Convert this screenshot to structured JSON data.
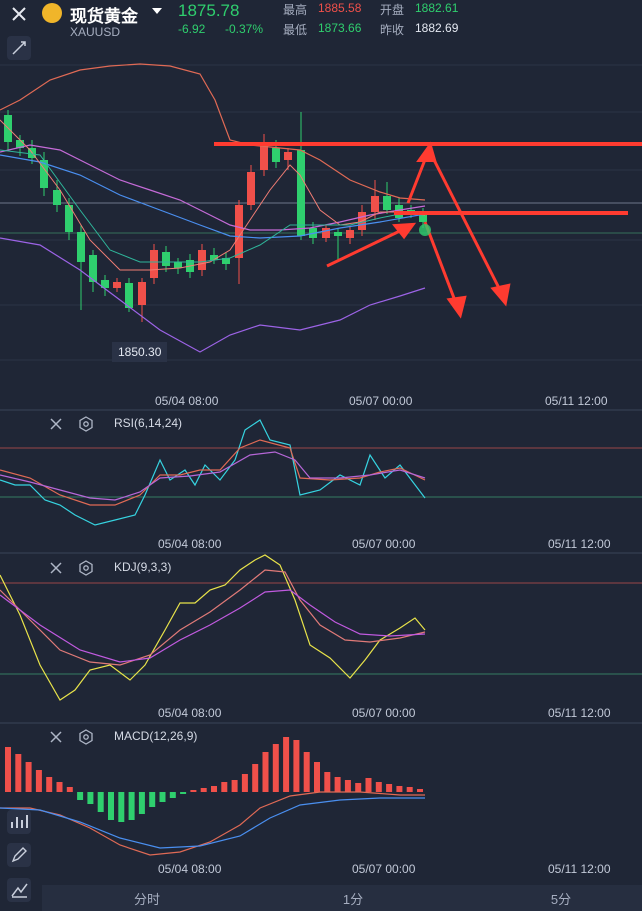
{
  "header": {
    "title": "现货黄金",
    "symbol": "XAUUSD",
    "price": "1875.78",
    "change": "-6.92",
    "change_pct": "-0.37%",
    "high_label": "最高",
    "high_value": "1885.58",
    "open_label": "开盘",
    "open_value": "1882.61",
    "low_label": "最低",
    "low_value": "1873.66",
    "prev_label": "昨收",
    "prev_value": "1882.69"
  },
  "main_chart": {
    "min_price_tag": "1850.30",
    "x_labels": [
      "05/04 08:00",
      "05/07 00:00",
      "05/11 12:00"
    ]
  },
  "rsi": {
    "label": "RSI(6,14,24)",
    "x_labels": [
      "05/04 08:00",
      "05/07 00:00",
      "05/11 12:00"
    ]
  },
  "kdj": {
    "label": "KDJ(9,3,3)",
    "x_labels": [
      "05/04 08:00",
      "05/07 00:00",
      "05/11 12:00"
    ]
  },
  "macd": {
    "label": "MACD(12,26,9)",
    "x_labels": [
      "05/04 08:00",
      "05/07 00:00",
      "05/11 12:00"
    ]
  },
  "tabs": [
    "分时",
    "1分",
    "5分"
  ],
  "colors": {
    "up": "#f0504a",
    "down": "#2fcf6e",
    "bg": "#1f2636",
    "annotation": "#ff3b30"
  }
}
